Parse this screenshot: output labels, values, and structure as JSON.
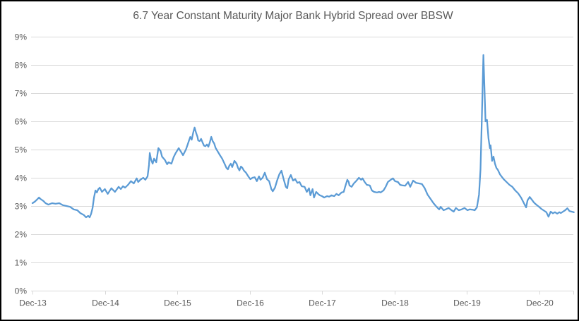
{
  "chart": {
    "title": "6.7 Year Constant Maturity Major Bank Hybrid Spread over BBSW",
    "colors": {
      "series": "#5B9BD5",
      "gridline": "#D9D9D9",
      "axis_line": "#D9D9D9",
      "text": "#595959",
      "frame_border": "#000000",
      "background": "#FFFFFF"
    }
  },
  "chart_data": {
    "type": "line",
    "title": "6.7 Year Constant Maturity Major Bank Hybrid Spread over BBSW",
    "xlabel": "",
    "ylabel": "",
    "y_format": "percent",
    "ylim": [
      0,
      9
    ],
    "y_tick_labels": [
      "0%",
      "1%",
      "2%",
      "3%",
      "4%",
      "5%",
      "6%",
      "7%",
      "8%",
      "9%"
    ],
    "x_tick_labels": [
      "Dec-13",
      "Dec-14",
      "Dec-15",
      "Dec-16",
      "Dec-17",
      "Dec-18",
      "Dec-19",
      "Dec-20"
    ],
    "x_unit": "years_after_Dec-13",
    "grid": "horizontal",
    "legend": "none",
    "points": [
      [
        0.0,
        3.1
      ],
      [
        0.03,
        3.15
      ],
      [
        0.06,
        3.22
      ],
      [
        0.09,
        3.3
      ],
      [
        0.11,
        3.25
      ],
      [
        0.15,
        3.18
      ],
      [
        0.18,
        3.1
      ],
      [
        0.22,
        3.05
      ],
      [
        0.27,
        3.1
      ],
      [
        0.32,
        3.08
      ],
      [
        0.37,
        3.1
      ],
      [
        0.42,
        3.03
      ],
      [
        0.47,
        3.0
      ],
      [
        0.52,
        2.97
      ],
      [
        0.57,
        2.88
      ],
      [
        0.62,
        2.85
      ],
      [
        0.66,
        2.75
      ],
      [
        0.71,
        2.68
      ],
      [
        0.74,
        2.6
      ],
      [
        0.77,
        2.65
      ],
      [
        0.79,
        2.6
      ],
      [
        0.81,
        2.72
      ],
      [
        0.83,
        2.93
      ],
      [
        0.85,
        3.3
      ],
      [
        0.87,
        3.55
      ],
      [
        0.89,
        3.48
      ],
      [
        0.91,
        3.6
      ],
      [
        0.93,
        3.65
      ],
      [
        0.96,
        3.5
      ],
      [
        1.0,
        3.6
      ],
      [
        1.04,
        3.43
      ],
      [
        1.09,
        3.63
      ],
      [
        1.14,
        3.5
      ],
      [
        1.19,
        3.68
      ],
      [
        1.22,
        3.6
      ],
      [
        1.25,
        3.7
      ],
      [
        1.28,
        3.65
      ],
      [
        1.32,
        3.75
      ],
      [
        1.36,
        3.88
      ],
      [
        1.4,
        3.8
      ],
      [
        1.44,
        3.98
      ],
      [
        1.46,
        3.85
      ],
      [
        1.49,
        3.93
      ],
      [
        1.53,
        4.0
      ],
      [
        1.56,
        3.93
      ],
      [
        1.59,
        4.05
      ],
      [
        1.61,
        4.45
      ],
      [
        1.62,
        4.88
      ],
      [
        1.64,
        4.63
      ],
      [
        1.66,
        4.5
      ],
      [
        1.68,
        4.68
      ],
      [
        1.71,
        4.55
      ],
      [
        1.74,
        5.05
      ],
      [
        1.77,
        4.95
      ],
      [
        1.79,
        4.75
      ],
      [
        1.83,
        4.63
      ],
      [
        1.86,
        4.48
      ],
      [
        1.88,
        4.55
      ],
      [
        1.92,
        4.5
      ],
      [
        1.95,
        4.73
      ],
      [
        1.98,
        4.88
      ],
      [
        2.02,
        5.05
      ],
      [
        2.05,
        4.93
      ],
      [
        2.08,
        4.8
      ],
      [
        2.12,
        5.0
      ],
      [
        2.14,
        5.15
      ],
      [
        2.16,
        5.3
      ],
      [
        2.18,
        5.45
      ],
      [
        2.2,
        5.35
      ],
      [
        2.22,
        5.6
      ],
      [
        2.24,
        5.78
      ],
      [
        2.26,
        5.6
      ],
      [
        2.28,
        5.45
      ],
      [
        2.29,
        5.32
      ],
      [
        2.31,
        5.3
      ],
      [
        2.33,
        5.38
      ],
      [
        2.35,
        5.25
      ],
      [
        2.37,
        5.14
      ],
      [
        2.39,
        5.12
      ],
      [
        2.41,
        5.18
      ],
      [
        2.43,
        5.1
      ],
      [
        2.45,
        5.25
      ],
      [
        2.47,
        5.45
      ],
      [
        2.49,
        5.3
      ],
      [
        2.51,
        5.22
      ],
      [
        2.53,
        5.06
      ],
      [
        2.56,
        4.93
      ],
      [
        2.59,
        4.8
      ],
      [
        2.62,
        4.68
      ],
      [
        2.65,
        4.52
      ],
      [
        2.68,
        4.35
      ],
      [
        2.7,
        4.3
      ],
      [
        2.72,
        4.43
      ],
      [
        2.74,
        4.5
      ],
      [
        2.76,
        4.38
      ],
      [
        2.79,
        4.6
      ],
      [
        2.82,
        4.5
      ],
      [
        2.84,
        4.35
      ],
      [
        2.86,
        4.26
      ],
      [
        2.88,
        4.4
      ],
      [
        2.9,
        4.35
      ],
      [
        2.92,
        4.26
      ],
      [
        2.95,
        4.18
      ],
      [
        2.98,
        4.06
      ],
      [
        3.01,
        3.95
      ],
      [
        3.04,
        4.0
      ],
      [
        3.07,
        4.02
      ],
      [
        3.1,
        3.88
      ],
      [
        3.13,
        4.05
      ],
      [
        3.15,
        3.93
      ],
      [
        3.18,
        4.0
      ],
      [
        3.21,
        4.18
      ],
      [
        3.24,
        3.95
      ],
      [
        3.27,
        3.88
      ],
      [
        3.3,
        3.6
      ],
      [
        3.32,
        3.52
      ],
      [
        3.35,
        3.65
      ],
      [
        3.38,
        3.9
      ],
      [
        3.41,
        4.12
      ],
      [
        3.44,
        4.25
      ],
      [
        3.47,
        3.95
      ],
      [
        3.5,
        3.68
      ],
      [
        3.52,
        3.63
      ],
      [
        3.54,
        3.95
      ],
      [
        3.57,
        4.1
      ],
      [
        3.6,
        3.9
      ],
      [
        3.63,
        3.95
      ],
      [
        3.66,
        3.82
      ],
      [
        3.69,
        3.85
      ],
      [
        3.72,
        3.7
      ],
      [
        3.76,
        3.68
      ],
      [
        3.79,
        3.5
      ],
      [
        3.82,
        3.63
      ],
      [
        3.84,
        3.38
      ],
      [
        3.87,
        3.6
      ],
      [
        3.89,
        3.3
      ],
      [
        3.92,
        3.5
      ],
      [
        3.95,
        3.42
      ],
      [
        3.97,
        3.38
      ],
      [
        4.0,
        3.35
      ],
      [
        4.03,
        3.3
      ],
      [
        4.07,
        3.35
      ],
      [
        4.1,
        3.33
      ],
      [
        4.13,
        3.38
      ],
      [
        4.17,
        3.35
      ],
      [
        4.2,
        3.43
      ],
      [
        4.23,
        3.38
      ],
      [
        4.27,
        3.48
      ],
      [
        4.3,
        3.5
      ],
      [
        4.32,
        3.68
      ],
      [
        4.35,
        3.93
      ],
      [
        4.37,
        3.85
      ],
      [
        4.38,
        3.73
      ],
      [
        4.41,
        3.68
      ],
      [
        4.44,
        3.8
      ],
      [
        4.47,
        3.88
      ],
      [
        4.51,
        4.0
      ],
      [
        4.54,
        3.93
      ],
      [
        4.56,
        3.98
      ],
      [
        4.59,
        3.85
      ],
      [
        4.62,
        3.75
      ],
      [
        4.66,
        3.73
      ],
      [
        4.69,
        3.55
      ],
      [
        4.72,
        3.5
      ],
      [
        4.76,
        3.48
      ],
      [
        4.79,
        3.5
      ],
      [
        4.81,
        3.48
      ],
      [
        4.85,
        3.55
      ],
      [
        4.88,
        3.68
      ],
      [
        4.91,
        3.85
      ],
      [
        4.95,
        3.93
      ],
      [
        4.98,
        3.98
      ],
      [
        5.01,
        3.88
      ],
      [
        5.05,
        3.85
      ],
      [
        5.08,
        3.75
      ],
      [
        5.11,
        3.73
      ],
      [
        5.15,
        3.72
      ],
      [
        5.19,
        3.85
      ],
      [
        5.22,
        3.68
      ],
      [
        5.26,
        3.9
      ],
      [
        5.3,
        3.82
      ],
      [
        5.34,
        3.8
      ],
      [
        5.38,
        3.78
      ],
      [
        5.42,
        3.63
      ],
      [
        5.46,
        3.4
      ],
      [
        5.5,
        3.25
      ],
      [
        5.54,
        3.1
      ],
      [
        5.58,
        2.98
      ],
      [
        5.62,
        2.88
      ],
      [
        5.64,
        2.97
      ],
      [
        5.68,
        2.85
      ],
      [
        5.71,
        2.88
      ],
      [
        5.75,
        2.93
      ],
      [
        5.79,
        2.85
      ],
      [
        5.82,
        2.8
      ],
      [
        5.85,
        2.93
      ],
      [
        5.89,
        2.85
      ],
      [
        5.93,
        2.88
      ],
      [
        5.97,
        2.93
      ],
      [
        6.01,
        2.85
      ],
      [
        6.04,
        2.88
      ],
      [
        6.08,
        2.87
      ],
      [
        6.11,
        2.85
      ],
      [
        6.14,
        2.95
      ],
      [
        6.17,
        3.4
      ],
      [
        6.19,
        4.3
      ],
      [
        6.21,
        6.2
      ],
      [
        6.23,
        8.35
      ],
      [
        6.24,
        7.6
      ],
      [
        6.25,
        6.8
      ],
      [
        6.26,
        6.0
      ],
      [
        6.28,
        6.05
      ],
      [
        6.3,
        5.4
      ],
      [
        6.32,
        5.05
      ],
      [
        6.33,
        5.15
      ],
      [
        6.35,
        4.6
      ],
      [
        6.37,
        4.75
      ],
      [
        6.39,
        4.5
      ],
      [
        6.41,
        4.35
      ],
      [
        6.43,
        4.28
      ],
      [
        6.46,
        4.12
      ],
      [
        6.48,
        4.05
      ],
      [
        6.51,
        3.95
      ],
      [
        6.55,
        3.85
      ],
      [
        6.59,
        3.75
      ],
      [
        6.63,
        3.68
      ],
      [
        6.67,
        3.55
      ],
      [
        6.71,
        3.45
      ],
      [
        6.75,
        3.3
      ],
      [
        6.79,
        3.1
      ],
      [
        6.82,
        2.95
      ],
      [
        6.84,
        3.2
      ],
      [
        6.87,
        3.32
      ],
      [
        6.9,
        3.22
      ],
      [
        6.93,
        3.12
      ],
      [
        6.96,
        3.05
      ],
      [
        7.0,
        2.97
      ],
      [
        7.03,
        2.9
      ],
      [
        7.06,
        2.85
      ],
      [
        7.1,
        2.78
      ],
      [
        7.13,
        2.62
      ],
      [
        7.16,
        2.8
      ],
      [
        7.19,
        2.74
      ],
      [
        7.22,
        2.78
      ],
      [
        7.25,
        2.73
      ],
      [
        7.28,
        2.78
      ],
      [
        7.3,
        2.75
      ],
      [
        7.33,
        2.8
      ],
      [
        7.36,
        2.85
      ],
      [
        7.39,
        2.92
      ],
      [
        7.42,
        2.82
      ],
      [
        7.45,
        2.8
      ],
      [
        7.48,
        2.78
      ]
    ]
  }
}
